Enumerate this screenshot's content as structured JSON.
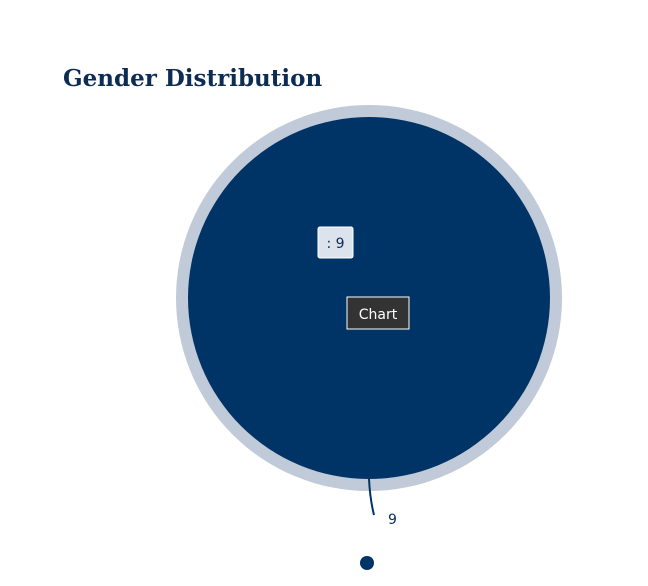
{
  "chart_data": {
    "type": "pie",
    "title": "Gender Distribution",
    "categories": [
      null
    ],
    "values": [
      9
    ],
    "colors": [
      "#003366"
    ],
    "halo_color": "#c0cad8",
    "tooltips": [
      ": 9",
      "Chart"
    ]
  }
}
